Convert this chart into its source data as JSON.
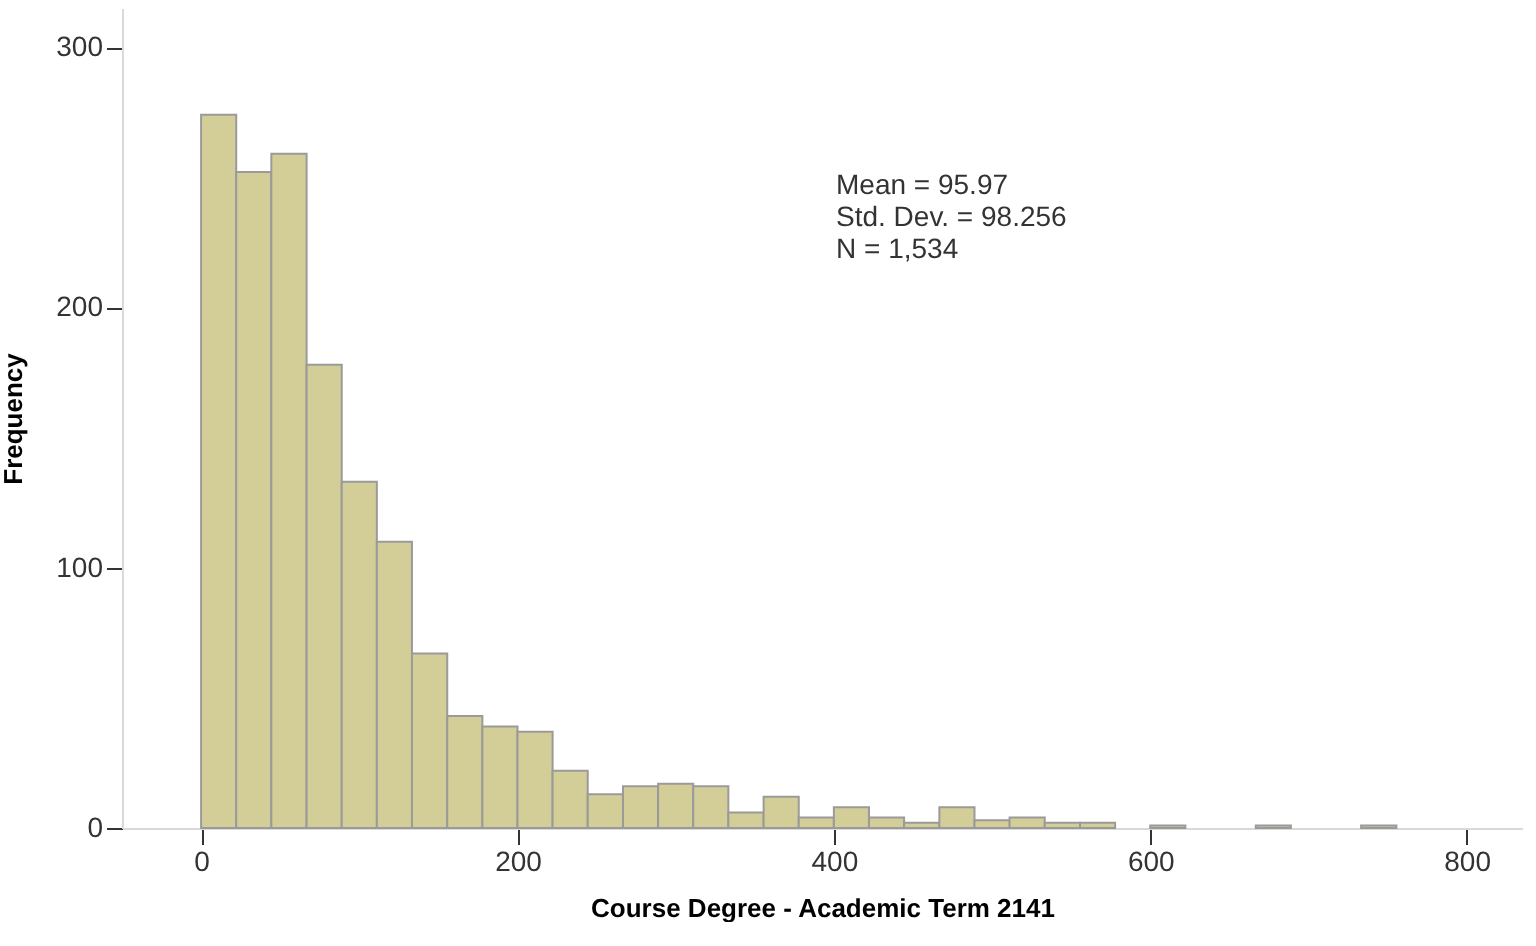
{
  "chart_data": {
    "type": "histogram",
    "xlabel": "Course Degree - Academic Term 2141",
    "ylabel": "Frequency",
    "bins": [
      0,
      22.2,
      44.4,
      66.7,
      88.9,
      111.1,
      133.3,
      155.6,
      177.8,
      200,
      222.2,
      244.4,
      266.7,
      288.9,
      311.1,
      333.3,
      355.6,
      377.8,
      400,
      422.2,
      444.4,
      466.7,
      488.9,
      511.1,
      533.3,
      555.6,
      577.8,
      600,
      622.2,
      644.4,
      666.7,
      688.9,
      711.1,
      733.3,
      755.6
    ],
    "values": [
      274,
      252,
      259,
      178,
      133,
      110,
      67,
      43,
      39,
      37,
      22,
      13,
      16,
      17,
      16,
      6,
      12,
      4,
      8,
      4,
      2,
      8,
      3,
      4,
      2,
      2,
      0,
      1,
      0,
      0,
      1,
      0,
      0,
      1
    ],
    "color": "#d3ce97",
    "xlim": [
      -50,
      835
    ],
    "ylim": [
      0,
      315
    ],
    "xticks": [
      0,
      200,
      400,
      600,
      800
    ],
    "yticks": [
      0,
      100,
      200,
      300
    ],
    "grid": false,
    "annotations": [
      "Mean = 95.97",
      "Std. Dev. = 98.256",
      "N = 1,534"
    ]
  }
}
